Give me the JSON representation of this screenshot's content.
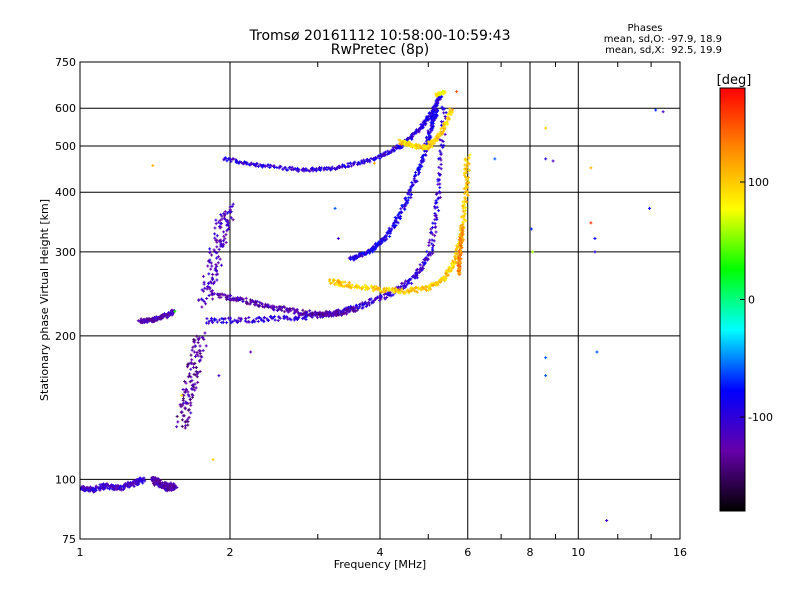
{
  "chart_data": {
    "type": "scatter",
    "title": "Tromsø 20161112 10:58:00-10:59:43",
    "subtitle": "RwPretec (8p)",
    "xlabel": "Frequency [MHz]",
    "ylabel": "Stationary phase Virtual Height [km]",
    "x_scale": "log",
    "y_scale": "log",
    "xlim": [
      1,
      16
    ],
    "ylim": [
      75,
      750
    ],
    "x_ticks": [
      1,
      2,
      4,
      6,
      8,
      10,
      16
    ],
    "x_tick_labels": [
      "1",
      "2",
      "4",
      "6",
      "8",
      "10",
      "16"
    ],
    "y_ticks": [
      75,
      100,
      200,
      300,
      400,
      500,
      600,
      750
    ],
    "y_tick_labels": [
      "75",
      "100",
      "200",
      "300",
      "400",
      "500",
      "600",
      "750"
    ],
    "grid": true,
    "phases": {
      "title": "Phases",
      "line_o": "mean, sd,O: -97.9, 18.9",
      "line_x": "mean, sd,X:  92.5, 19.9"
    },
    "colorbar": {
      "label": "[deg]",
      "range": [
        -180,
        180
      ],
      "ticks": [
        100,
        0,
        -100
      ],
      "tick_labels": [
        "100",
        "0",
        "-100"
      ],
      "palette": [
        "#000000",
        "#6600aa",
        "#0000ff",
        "#00ffff",
        "#00ff00",
        "#ffff00",
        "#ff8800",
        "#ff0000"
      ]
    },
    "traces": [
      {
        "x": [
          1.0,
          1.06,
          1.12,
          1.2,
          1.28,
          1.34
        ],
        "y": [
          96,
          95,
          97,
          96,
          98,
          100
        ],
        "phase": -110,
        "spread": 0.012
      },
      {
        "x": [
          1.32,
          1.4,
          1.48,
          1.55
        ],
        "y": [
          215,
          216,
          220,
          225
        ],
        "phase": -120,
        "spread": 0.01
      },
      {
        "x": [
          1.6,
          1.65,
          1.7,
          1.75
        ],
        "y": [
          130,
          150,
          175,
          200
        ],
        "phase": -130,
        "spread": 0.03
      },
      {
        "x": [
          1.4,
          1.45,
          1.5,
          1.55
        ],
        "y": [
          100,
          98,
          96,
          97
        ],
        "phase": -125,
        "spread": 0.015
      },
      {
        "x": [
          1.78,
          1.85,
          1.92,
          2.0
        ],
        "y": [
          235,
          280,
          330,
          370
        ],
        "phase": -115,
        "spread": 0.035
      },
      {
        "x": [
          1.8,
          2.2,
          2.7,
          3.2,
          3.7,
          4.2,
          4.7,
          5.05,
          5.25,
          5.4
        ],
        "y": [
          215,
          216,
          218,
          222,
          232,
          245,
          265,
          300,
          400,
          620
        ],
        "phase": -105,
        "spread": 0.012
      },
      {
        "x": [
          1.85,
          2.1,
          2.4,
          2.7,
          3.0,
          3.3,
          3.6
        ],
        "y": [
          245,
          238,
          230,
          225,
          222,
          223,
          228
        ],
        "phase": -125,
        "spread": 0.012
      },
      {
        "x": [
          1.95,
          2.3,
          2.8,
          3.3,
          3.9,
          4.4,
          4.8,
          5.1,
          5.3
        ],
        "y": [
          470,
          455,
          445,
          450,
          470,
          500,
          540,
          590,
          640
        ],
        "phase": -100,
        "spread": 0.008
      },
      {
        "x": [
          3.5,
          3.8,
          4.1,
          4.4,
          4.7,
          4.95,
          5.1,
          5.2
        ],
        "y": [
          290,
          300,
          320,
          360,
          420,
          500,
          560,
          600
        ],
        "phase": -90,
        "spread": 0.01
      },
      {
        "x": [
          3.2,
          3.5,
          4.0,
          4.5,
          5.0,
          5.4,
          5.7,
          5.85,
          5.95,
          6.0
        ],
        "y": [
          260,
          255,
          250,
          248,
          252,
          265,
          290,
          330,
          400,
          480
        ],
        "phase": 100,
        "spread": 0.012
      },
      {
        "x": [
          4.4,
          4.7,
          5.0,
          5.3,
          5.6
        ],
        "y": [
          510,
          500,
          495,
          530,
          600
        ],
        "phase": 95,
        "spread": 0.01
      },
      {
        "x": [
          5.2,
          5.4
        ],
        "y": [
          640,
          650
        ],
        "phase": 80,
        "spread": 0.006
      },
      {
        "x": [
          5.75,
          5.8,
          5.85
        ],
        "y": [
          270,
          300,
          340
        ],
        "phase": 130,
        "spread": 0.006
      }
    ],
    "isolated_points": [
      {
        "x": 1.4,
        "y": 455,
        "phase": 110
      },
      {
        "x": 1.55,
        "y": 225,
        "phase": 30
      },
      {
        "x": 1.6,
        "y": 150,
        "phase": 90
      },
      {
        "x": 1.85,
        "y": 110,
        "phase": 100
      },
      {
        "x": 1.9,
        "y": 165,
        "phase": -110
      },
      {
        "x": 2.2,
        "y": 185,
        "phase": -120
      },
      {
        "x": 3.25,
        "y": 370,
        "phase": -60
      },
      {
        "x": 3.3,
        "y": 320,
        "phase": -110
      },
      {
        "x": 3.9,
        "y": 460,
        "phase": 110
      },
      {
        "x": 5.0,
        "y": 510,
        "phase": 90
      },
      {
        "x": 5.7,
        "y": 650,
        "phase": 150
      },
      {
        "x": 6.8,
        "y": 470,
        "phase": -60
      },
      {
        "x": 8.1,
        "y": 300,
        "phase": 60
      },
      {
        "x": 8.05,
        "y": 335,
        "phase": -70
      },
      {
        "x": 8.6,
        "y": 545,
        "phase": 100
      },
      {
        "x": 8.6,
        "y": 470,
        "phase": -100
      },
      {
        "x": 8.6,
        "y": 180,
        "phase": -60
      },
      {
        "x": 8.6,
        "y": 165,
        "phase": -60
      },
      {
        "x": 8.9,
        "y": 465,
        "phase": -110
      },
      {
        "x": 10.6,
        "y": 450,
        "phase": 110
      },
      {
        "x": 10.6,
        "y": 345,
        "phase": 160
      },
      {
        "x": 10.8,
        "y": 320,
        "phase": -80
      },
      {
        "x": 10.8,
        "y": 300,
        "phase": -100
      },
      {
        "x": 10.9,
        "y": 185,
        "phase": -60
      },
      {
        "x": 11.4,
        "y": 82,
        "phase": -110
      },
      {
        "x": 13.9,
        "y": 370,
        "phase": -80
      },
      {
        "x": 14.3,
        "y": 595,
        "phase": -70
      },
      {
        "x": 14.8,
        "y": 590,
        "phase": -110
      }
    ]
  }
}
